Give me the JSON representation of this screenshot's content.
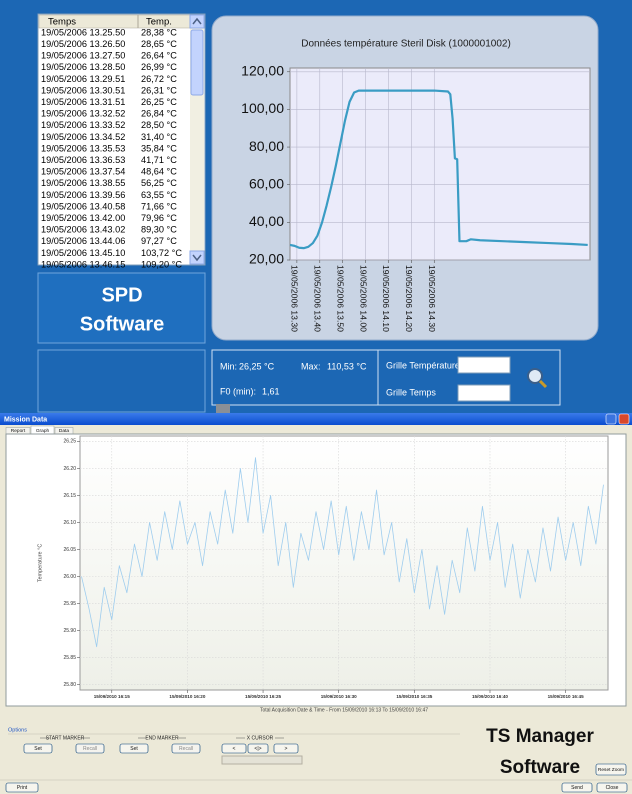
{
  "spd_window": {
    "label_line1": "SPD",
    "label_line2": "Software",
    "table": {
      "headers": [
        "Temps",
        "Temp."
      ],
      "rows": [
        [
          "19/05/2006 13.25.50",
          "28,38 °C"
        ],
        [
          "19/05/2006 13.26.50",
          "28,65 °C"
        ],
        [
          "19/05/2006 13.27.50",
          "26,64 °C"
        ],
        [
          "19/05/2006 13.28.50",
          "26,99 °C"
        ],
        [
          "19/05/2006 13.29.51",
          "26,72 °C"
        ],
        [
          "19/05/2006 13.30.51",
          "26,31 °C"
        ],
        [
          "19/05/2006 13.31.51",
          "26,25 °C"
        ],
        [
          "19/05/2006 13.32.52",
          "26,84 °C"
        ],
        [
          "19/05/2006 13.33.52",
          "28,50 °C"
        ],
        [
          "19/05/2006 13.34.52",
          "31,40 °C"
        ],
        [
          "19/05/2006 13.35.53",
          "35,84 °C"
        ],
        [
          "19/05/2006 13.36.53",
          "41,71 °C"
        ],
        [
          "19/05/2006 13.37.54",
          "48,64 °C"
        ],
        [
          "19/05/2006 13.38.55",
          "56,25 °C"
        ],
        [
          "19/05/2006 13.39.56",
          "63,55 °C"
        ],
        [
          "19/05/2006 13.40.58",
          "71,66 °C"
        ],
        [
          "19/05/2006 13.42.00",
          "79,96 °C"
        ],
        [
          "19/05/2006 13.43.02",
          "89,30 °C"
        ],
        [
          "19/05/2006 13.44.06",
          "97,27 °C"
        ],
        [
          "19/05/2006 13.45.10",
          "103,72 °C"
        ],
        [
          "19/05/2006 13.46.15",
          "109,20 °C"
        ]
      ]
    },
    "stats": {
      "min_label": "Min:",
      "min_value": "26,25 °C",
      "max_label": "Max:",
      "max_value": "110,53 °C",
      "f0_label": "F0 (min):",
      "f0_value": "1,61",
      "grid_temp": "Grille Température",
      "grid_time": "Grille Temps"
    }
  },
  "ts_window": {
    "title": "Mission Data",
    "tabs": [
      "Report",
      "Graph",
      "Data"
    ],
    "options": "Options",
    "start_marker": "START MARKER",
    "end_marker": "END MARKER",
    "x_cursor": "X CURSOR",
    "buttons": [
      "Set",
      "Recall",
      "Set",
      "Recall",
      "<",
      "<|>",
      ">"
    ],
    "reset_zoom": "Reset Zoom",
    "print": "Print",
    "send": "Send",
    "close": "Close",
    "label_line1": "TS Manager",
    "label_line2": "Software"
  },
  "chart_data": [
    {
      "type": "line",
      "title": "Données température Steril Disk (1000001002)",
      "color": "#3a9cc4",
      "x": [
        27,
        29,
        31,
        33,
        35,
        37,
        39,
        41,
        43,
        45,
        47,
        49,
        51,
        53,
        55,
        57,
        60,
        70,
        80,
        90,
        96,
        97,
        98,
        99,
        100,
        101,
        102,
        104,
        106,
        110,
        120,
        130,
        140,
        150,
        157
      ],
      "values": [
        28,
        27.5,
        26.5,
        26.3,
        27,
        29,
        33,
        40,
        49,
        59,
        70,
        82,
        94,
        104,
        109,
        110,
        110,
        110,
        110,
        110,
        109.5,
        108,
        95,
        74,
        73.5,
        30,
        30,
        30,
        31,
        30.5,
        30,
        29.5,
        29,
        28.5,
        28
      ],
      "xlim": [
        27,
        158
      ],
      "xticks": [
        {
          "value": 30,
          "label": "19/05/2006 13.30"
        },
        {
          "value": 40,
          "label": "19/05/2006 13.40"
        },
        {
          "value": 50,
          "label": "19/05/2006 13.50"
        },
        {
          "value": 60,
          "label": "19/05/2006 14.00"
        },
        {
          "value": 70,
          "label": "19/05/2006 14.10"
        },
        {
          "value": 80,
          "label": "19/05/2006 14.20"
        },
        {
          "value": 90,
          "label": "19/05/2006 14.30"
        }
      ],
      "ylim": [
        20,
        122
      ],
      "yticks": [
        {
          "value": 20,
          "label": "20,00"
        },
        {
          "value": 40,
          "label": "40,00"
        },
        {
          "value": 60,
          "label": "60,00"
        },
        {
          "value": 80,
          "label": "80,00"
        },
        {
          "value": 100,
          "label": "100,00"
        },
        {
          "value": 120,
          "label": "120,00"
        }
      ],
      "grid": true
    },
    {
      "type": "line",
      "y_label": "Temperature °C",
      "x_label": "Total Acquisition Date & Time - From 15/09/2010 16:13 To 15/09/2010 16:47",
      "color": "#9fcdee",
      "x": [
        13,
        13.5,
        14,
        14.5,
        15,
        15.5,
        16,
        16.5,
        17,
        17.5,
        18,
        18.5,
        19,
        19.5,
        20,
        20.5,
        21,
        21.5,
        22,
        22.5,
        23,
        23.5,
        24,
        24.5,
        25,
        25.5,
        26,
        26.5,
        27,
        27.5,
        28,
        28.5,
        29,
        29.5,
        30,
        30.5,
        31,
        31.5,
        32,
        32.5,
        33,
        33.5,
        34,
        34.5,
        35,
        35.5,
        36,
        36.5,
        37,
        37.5,
        38,
        38.5,
        39,
        39.5,
        40,
        40.5,
        41,
        41.5,
        42,
        42.5,
        43,
        43.5,
        44,
        44.5,
        45,
        45.5,
        46,
        46.5,
        47,
        47.5
      ],
      "values": [
        26.0,
        25.94,
        25.87,
        25.98,
        25.92,
        26.02,
        25.97,
        26.06,
        26.0,
        26.1,
        26.03,
        26.12,
        26.05,
        26.14,
        26.06,
        26.1,
        26.02,
        26.12,
        26.06,
        26.16,
        26.08,
        26.2,
        26.1,
        26.22,
        26.08,
        26.15,
        26.02,
        26.1,
        25.98,
        26.08,
        26.03,
        26.12,
        26.05,
        26.14,
        26.04,
        26.13,
        26.03,
        26.12,
        26.05,
        26.16,
        26.04,
        26.1,
        25.99,
        26.07,
        25.97,
        26.05,
        25.94,
        26.02,
        25.93,
        26.03,
        25.97,
        26.09,
        26.01,
        26.13,
        26.03,
        26.1,
        25.98,
        26.06,
        25.96,
        26.05,
        25.99,
        26.09,
        26.01,
        26.11,
        26.03,
        26.1,
        26.02,
        26.13,
        26.06,
        26.17
      ],
      "xlim": [
        12.9,
        47.8
      ],
      "xticks": [
        {
          "value": 15,
          "label": "15/09/2010 16:15"
        },
        {
          "value": 20,
          "label": "15/09/2010 16:20"
        },
        {
          "value": 25,
          "label": "15/09/2010 16:25"
        },
        {
          "value": 30,
          "label": "15/09/2010 16:30"
        },
        {
          "value": 35,
          "label": "15/09/2010 16:35"
        },
        {
          "value": 40,
          "label": "15/09/2010 16:40"
        },
        {
          "value": 45,
          "label": "15/09/2010 16:45"
        }
      ],
      "ylim": [
        25.79,
        26.26
      ],
      "yticks": [
        {
          "value": 25.8,
          "label": "25.80"
        },
        25.85,
        {
          "value": 25.9,
          "label": "25.90"
        },
        25.95,
        {
          "value": 26.0,
          "label": "26.00"
        },
        26.05,
        {
          "value": 26.1,
          "label": "26.10"
        },
        26.15,
        {
          "value": 26.2,
          "label": "26.20"
        },
        26.25
      ],
      "grid": true
    }
  ]
}
